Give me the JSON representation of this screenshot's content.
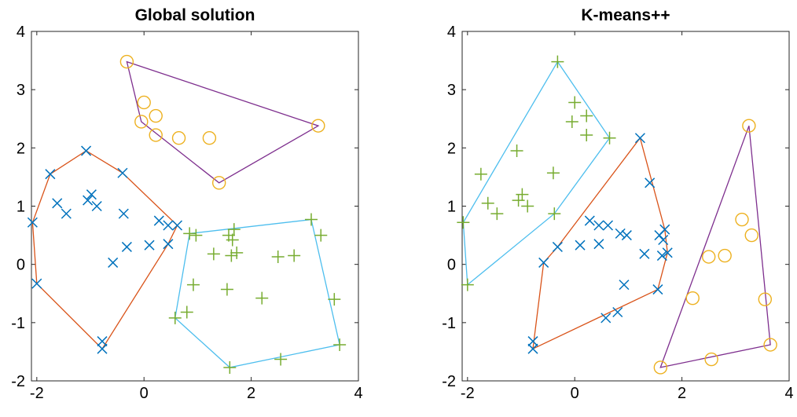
{
  "colors": {
    "blue": "#0072BD",
    "orange": "#D95319",
    "yellow": "#EDB120",
    "purple": "#7E2F8E",
    "green": "#77AC30",
    "cyan": "#4DBEEE"
  },
  "chart_data": [
    {
      "type": "scatter",
      "title": "Global solution",
      "xlim": [
        -2.1,
        4
      ],
      "ylim": [
        -2,
        4
      ],
      "xticks": [
        "-2",
        "0",
        "2",
        "4"
      ],
      "yticks": [
        "-2",
        "-1",
        "0",
        "1",
        "2",
        "3",
        "4"
      ],
      "xlabel": "",
      "ylabel": "",
      "grid": false,
      "series": [
        {
          "marker": "x",
          "color": "#0072BD",
          "hull_color": "#D95319",
          "points": [
            [
              -2.08,
              0.72
            ],
            [
              -2.0,
              -0.33
            ],
            [
              -1.75,
              1.55
            ],
            [
              -1.62,
              1.05
            ],
            [
              -1.45,
              0.87
            ],
            [
              -1.08,
              1.95
            ],
            [
              -1.05,
              1.1
            ],
            [
              -0.98,
              1.2
            ],
            [
              -0.88,
              1.0
            ],
            [
              -0.78,
              -1.32
            ],
            [
              -0.78,
              -1.45
            ],
            [
              -0.58,
              0.03
            ],
            [
              -0.4,
              1.57
            ],
            [
              -0.38,
              0.87
            ],
            [
              -0.32,
              0.3
            ],
            [
              0.1,
              0.33
            ],
            [
              0.28,
              0.75
            ],
            [
              0.45,
              0.67
            ],
            [
              0.45,
              0.35
            ],
            [
              0.62,
              0.67
            ]
          ],
          "hull": [
            [
              -2.08,
              0.72
            ],
            [
              -1.75,
              1.55
            ],
            [
              -1.08,
              1.95
            ],
            [
              -0.4,
              1.57
            ],
            [
              0.62,
              0.67
            ],
            [
              0.45,
              0.35
            ],
            [
              -0.78,
              -1.45
            ],
            [
              -2.0,
              -0.33
            ]
          ]
        },
        {
          "marker": "o",
          "color": "#EDB120",
          "hull_color": "#7E2F8E",
          "points": [
            [
              -0.32,
              3.48
            ],
            [
              0.0,
              2.78
            ],
            [
              -0.05,
              2.45
            ],
            [
              0.22,
              2.55
            ],
            [
              0.22,
              2.22
            ],
            [
              0.65,
              2.17
            ],
            [
              1.22,
              2.17
            ],
            [
              1.4,
              1.4
            ],
            [
              3.25,
              2.38
            ]
          ],
          "hull": [
            [
              -0.32,
              3.48
            ],
            [
              3.25,
              2.38
            ],
            [
              1.4,
              1.4
            ],
            [
              -0.05,
              2.45
            ]
          ]
        },
        {
          "marker": "+",
          "color": "#77AC30",
          "hull_color": "#4DBEEE",
          "points": [
            [
              0.58,
              -0.92
            ],
            [
              0.8,
              -0.82
            ],
            [
              0.85,
              0.53
            ],
            [
              0.92,
              -0.35
            ],
            [
              0.97,
              0.5
            ],
            [
              1.3,
              0.18
            ],
            [
              1.55,
              -0.43
            ],
            [
              1.58,
              0.5
            ],
            [
              1.63,
              0.15
            ],
            [
              1.65,
              0.42
            ],
            [
              1.68,
              0.6
            ],
            [
              1.73,
              0.2
            ],
            [
              1.6,
              -1.77
            ],
            [
              2.2,
              -0.58
            ],
            [
              2.5,
              0.13
            ],
            [
              2.55,
              -1.63
            ],
            [
              2.8,
              0.15
            ],
            [
              3.12,
              0.77
            ],
            [
              3.3,
              0.5
            ],
            [
              3.55,
              -0.6
            ],
            [
              3.65,
              -1.38
            ]
          ],
          "hull": [
            [
              0.58,
              -0.92
            ],
            [
              0.85,
              0.53
            ],
            [
              3.12,
              0.77
            ],
            [
              3.65,
              -1.38
            ],
            [
              1.6,
              -1.77
            ]
          ]
        }
      ]
    },
    {
      "type": "scatter",
      "title": "K-means++",
      "xlim": [
        -2.1,
        4
      ],
      "ylim": [
        -2,
        4
      ],
      "xticks": [
        "-2",
        "0",
        "2",
        "4"
      ],
      "yticks": [
        "-2",
        "-1",
        "0",
        "1",
        "2",
        "3",
        "4"
      ],
      "xlabel": "",
      "ylabel": "",
      "grid": false,
      "series": [
        {
          "marker": "+",
          "color": "#77AC30",
          "hull_color": "#4DBEEE",
          "points": [
            [
              -2.08,
              0.72
            ],
            [
              -2.0,
              -0.35
            ],
            [
              -1.75,
              1.55
            ],
            [
              -1.62,
              1.05
            ],
            [
              -1.45,
              0.87
            ],
            [
              -1.08,
              1.95
            ],
            [
              -1.05,
              1.1
            ],
            [
              -0.98,
              1.2
            ],
            [
              -0.88,
              1.0
            ],
            [
              -0.4,
              1.57
            ],
            [
              -0.38,
              0.87
            ],
            [
              -0.32,
              3.48
            ],
            [
              0.0,
              2.78
            ],
            [
              -0.05,
              2.45
            ],
            [
              0.22,
              2.55
            ],
            [
              0.22,
              2.22
            ],
            [
              0.65,
              2.17
            ]
          ],
          "hull": [
            [
              -2.08,
              0.72
            ],
            [
              -0.32,
              3.48
            ],
            [
              0.65,
              2.17
            ],
            [
              -0.38,
              0.87
            ],
            [
              -2.0,
              -0.35
            ]
          ]
        },
        {
          "marker": "x",
          "color": "#0072BD",
          "hull_color": "#D95319",
          "points": [
            [
              -0.78,
              -1.32
            ],
            [
              -0.78,
              -1.45
            ],
            [
              -0.58,
              0.03
            ],
            [
              -0.32,
              0.3
            ],
            [
              0.1,
              0.33
            ],
            [
              0.28,
              0.75
            ],
            [
              0.45,
              0.67
            ],
            [
              0.45,
              0.35
            ],
            [
              0.62,
              0.67
            ],
            [
              0.58,
              -0.92
            ],
            [
              0.8,
              -0.82
            ],
            [
              0.85,
              0.53
            ],
            [
              0.92,
              -0.35
            ],
            [
              0.97,
              0.5
            ],
            [
              1.22,
              2.17
            ],
            [
              1.3,
              0.18
            ],
            [
              1.4,
              1.4
            ],
            [
              1.55,
              -0.43
            ],
            [
              1.58,
              0.5
            ],
            [
              1.63,
              0.15
            ],
            [
              1.65,
              0.42
            ],
            [
              1.68,
              0.6
            ],
            [
              1.73,
              0.2
            ]
          ],
          "hull": [
            [
              -0.78,
              -1.45
            ],
            [
              -0.58,
              0.03
            ],
            [
              -0.32,
              0.3
            ],
            [
              1.22,
              2.17
            ],
            [
              1.68,
              0.6
            ],
            [
              1.73,
              0.2
            ],
            [
              1.55,
              -0.43
            ]
          ]
        },
        {
          "marker": "o",
          "color": "#EDB120",
          "hull_color": "#7E2F8E",
          "points": [
            [
              1.6,
              -1.77
            ],
            [
              2.2,
              -0.58
            ],
            [
              2.5,
              0.13
            ],
            [
              2.55,
              -1.63
            ],
            [
              2.8,
              0.15
            ],
            [
              3.12,
              0.77
            ],
            [
              3.25,
              2.38
            ],
            [
              3.3,
              0.5
            ],
            [
              3.55,
              -0.6
            ],
            [
              3.65,
              -1.38
            ]
          ],
          "hull": [
            [
              1.6,
              -1.77
            ],
            [
              3.25,
              2.38
            ],
            [
              3.65,
              -1.38
            ]
          ]
        }
      ]
    }
  ]
}
